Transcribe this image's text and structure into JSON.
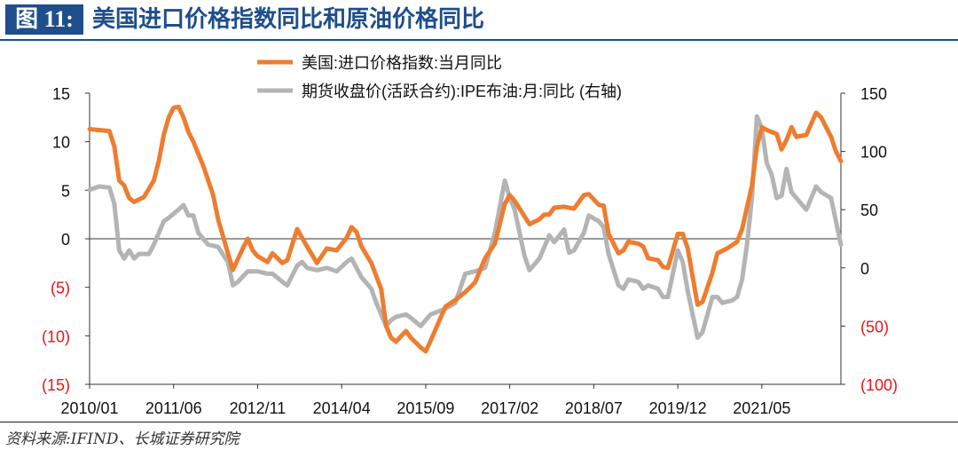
{
  "figure": {
    "tag": "图 11:",
    "title": "美国进口价格指数同比和原油价格同比",
    "source": "资料来源:IFIND、长城证券研究院",
    "accent_color": "#1f4e8c"
  },
  "chart_data": {
    "type": "line",
    "grid": false,
    "legend_position": "top",
    "x_tick_labels": [
      "2010/01",
      "2011/06",
      "2012/11",
      "2014/04",
      "2015/09",
      "2017/02",
      "2018/07",
      "2019/12",
      "2021/05"
    ],
    "left_axis": {
      "ylim": [
        -15,
        15
      ],
      "ticks": [
        15,
        10,
        5,
        0,
        -5,
        -10,
        -15
      ],
      "tick_labels": [
        "15",
        "10",
        "5",
        "0",
        "(5)",
        "(10)",
        "(15)"
      ],
      "negative_label_color": "#e8141b"
    },
    "right_axis": {
      "ylim": [
        -100,
        150
      ],
      "ticks": [
        150,
        100,
        50,
        0,
        -50,
        -100
      ],
      "tick_labels": [
        "150",
        "100",
        "50",
        "0",
        "(50)",
        "(100)"
      ],
      "negative_label_color": "#e8141b"
    },
    "series": [
      {
        "name": "美国:进口价格指数:当月同比",
        "axis": "left",
        "color": "#ed7d31",
        "points": [
          [
            "2010/01",
            11.3
          ],
          [
            "2010/05",
            11.1
          ],
          [
            "2010/06",
            9.5
          ],
          [
            "2010/07",
            6.0
          ],
          [
            "2010/08",
            5.5
          ],
          [
            "2010/09",
            4.2
          ],
          [
            "2010/10",
            3.8
          ],
          [
            "2010/12",
            4.3
          ],
          [
            "2011/02",
            6.0
          ],
          [
            "2011/03",
            8.0
          ],
          [
            "2011/04",
            10.7
          ],
          [
            "2011/05",
            12.5
          ],
          [
            "2011/06",
            13.5
          ],
          [
            "2011/07",
            13.6
          ],
          [
            "2011/08",
            12.5
          ],
          [
            "2011/09",
            11.0
          ],
          [
            "2011/10",
            10.0
          ],
          [
            "2011/12",
            7.5
          ],
          [
            "2012/02",
            4.5
          ],
          [
            "2012/03",
            2.0
          ],
          [
            "2012/05",
            -1.5
          ],
          [
            "2012/06",
            -3.2
          ],
          [
            "2012/08",
            -1.0
          ],
          [
            "2012/09",
            0.0
          ],
          [
            "2012/10",
            -1.2
          ],
          [
            "2012/11",
            -1.8
          ],
          [
            "2013/01",
            -2.4
          ],
          [
            "2013/02",
            -1.5
          ],
          [
            "2013/04",
            -2.5
          ],
          [
            "2013/05",
            -2.2
          ],
          [
            "2013/07",
            1.0
          ],
          [
            "2013/09",
            -0.8
          ],
          [
            "2013/11",
            -2.5
          ],
          [
            "2014/01",
            -1.0
          ],
          [
            "2014/03",
            -1.2
          ],
          [
            "2014/05",
            0.1
          ],
          [
            "2014/06",
            1.2
          ],
          [
            "2014/07",
            0.7
          ],
          [
            "2014/08",
            -0.8
          ],
          [
            "2014/10",
            -2.5
          ],
          [
            "2014/12",
            -5.2
          ],
          [
            "2015/01",
            -9.0
          ],
          [
            "2015/02",
            -10.2
          ],
          [
            "2015/03",
            -10.6
          ],
          [
            "2015/05",
            -9.5
          ],
          [
            "2015/06",
            -10.2
          ],
          [
            "2015/08",
            -11.2
          ],
          [
            "2015/09",
            -11.6
          ],
          [
            "2015/10",
            -10.5
          ],
          [
            "2016/01",
            -7.0
          ],
          [
            "2016/03",
            -6.3
          ],
          [
            "2016/05",
            -5.5
          ],
          [
            "2016/07",
            -4.5
          ],
          [
            "2016/09",
            -2.0
          ],
          [
            "2016/11",
            -0.5
          ],
          [
            "2017/01",
            3.6
          ],
          [
            "2017/02",
            4.5
          ],
          [
            "2017/03",
            3.9
          ],
          [
            "2017/05",
            2.3
          ],
          [
            "2017/06",
            1.5
          ],
          [
            "2017/08",
            2.0
          ],
          [
            "2017/09",
            2.5
          ],
          [
            "2017/10",
            2.5
          ],
          [
            "2017/11",
            3.2
          ],
          [
            "2018/01",
            3.3
          ],
          [
            "2018/03",
            3.1
          ],
          [
            "2018/05",
            4.5
          ],
          [
            "2018/06",
            4.6
          ],
          [
            "2018/08",
            3.5
          ],
          [
            "2018/09",
            3.4
          ],
          [
            "2018/10",
            0.5
          ],
          [
            "2018/12",
            -1.5
          ],
          [
            "2019/01",
            -1.2
          ],
          [
            "2019/02",
            -0.3
          ],
          [
            "2019/04",
            -0.5
          ],
          [
            "2019/05",
            -0.8
          ],
          [
            "2019/06",
            -2.0
          ],
          [
            "2019/08",
            -2.2
          ],
          [
            "2019/09",
            -2.9
          ],
          [
            "2019/10",
            -3.0
          ],
          [
            "2019/12",
            0.5
          ],
          [
            "2020/01",
            0.5
          ],
          [
            "2020/02",
            -1.0
          ],
          [
            "2020/04",
            -6.8
          ],
          [
            "2020/05",
            -6.5
          ],
          [
            "2020/07",
            -3.5
          ],
          [
            "2020/08",
            -1.5
          ],
          [
            "2020/10",
            -1.0
          ],
          [
            "2020/12",
            -0.3
          ],
          [
            "2021/01",
            1.0
          ],
          [
            "2021/03",
            5.5
          ],
          [
            "2021/04",
            9.5
          ],
          [
            "2021/05",
            11.5
          ],
          [
            "2021/06",
            11.2
          ],
          [
            "2021/08",
            10.8
          ],
          [
            "2021/09",
            9.2
          ],
          [
            "2021/10",
            10.2
          ],
          [
            "2021/11",
            11.5
          ],
          [
            "2021/12",
            10.5
          ],
          [
            "2022/02",
            10.7
          ],
          [
            "2022/04",
            13.0
          ],
          [
            "2022/05",
            12.5
          ],
          [
            "2022/07",
            10.5
          ],
          [
            "2022/08",
            9.0
          ],
          [
            "2022/09",
            8.0
          ]
        ]
      },
      {
        "name": "期货收盘价(活跃合约):IPE布油:月:同比 (右轴)",
        "axis": "right",
        "color": "#b4b4b4",
        "points": [
          [
            "2010/01",
            67
          ],
          [
            "2010/03",
            70
          ],
          [
            "2010/05",
            69
          ],
          [
            "2010/06",
            55
          ],
          [
            "2010/07",
            15
          ],
          [
            "2010/08",
            8
          ],
          [
            "2010/09",
            15
          ],
          [
            "2010/10",
            8
          ],
          [
            "2010/11",
            12
          ],
          [
            "2011/01",
            12
          ],
          [
            "2011/02",
            20
          ],
          [
            "2011/04",
            40
          ],
          [
            "2011/05",
            43
          ],
          [
            "2011/07",
            50
          ],
          [
            "2011/08",
            54
          ],
          [
            "2011/09",
            45
          ],
          [
            "2011/10",
            45
          ],
          [
            "2011/11",
            30
          ],
          [
            "2012/01",
            20
          ],
          [
            "2012/03",
            18
          ],
          [
            "2012/05",
            5
          ],
          [
            "2012/06",
            -15
          ],
          [
            "2012/07",
            -12
          ],
          [
            "2012/09",
            -3
          ],
          [
            "2012/11",
            -3
          ],
          [
            "2013/01",
            -5
          ],
          [
            "2013/02",
            -5
          ],
          [
            "2013/04",
            -12
          ],
          [
            "2013/05",
            -15
          ],
          [
            "2013/07",
            2
          ],
          [
            "2013/08",
            5
          ],
          [
            "2013/09",
            0
          ],
          [
            "2013/11",
            -2
          ],
          [
            "2014/01",
            0
          ],
          [
            "2014/03",
            -3
          ],
          [
            "2014/05",
            5
          ],
          [
            "2014/06",
            8
          ],
          [
            "2014/07",
            0
          ],
          [
            "2014/08",
            -8
          ],
          [
            "2014/10",
            -18
          ],
          [
            "2014/11",
            -30
          ],
          [
            "2015/01",
            -50
          ],
          [
            "2015/02",
            -45
          ],
          [
            "2015/03",
            -42
          ],
          [
            "2015/05",
            -40
          ],
          [
            "2015/06",
            -43
          ],
          [
            "2015/08",
            -50
          ],
          [
            "2015/09",
            -45
          ],
          [
            "2015/10",
            -40
          ],
          [
            "2016/01",
            -35
          ],
          [
            "2016/03",
            -30
          ],
          [
            "2016/05",
            -5
          ],
          [
            "2016/07",
            -3
          ],
          [
            "2016/09",
            0
          ],
          [
            "2016/10",
            15
          ],
          [
            "2016/11",
            30
          ],
          [
            "2017/01",
            75
          ],
          [
            "2017/02",
            60
          ],
          [
            "2017/03",
            50
          ],
          [
            "2017/05",
            10
          ],
          [
            "2017/06",
            -2
          ],
          [
            "2017/08",
            8
          ],
          [
            "2017/10",
            28
          ],
          [
            "2017/11",
            22
          ],
          [
            "2018/01",
            33
          ],
          [
            "2018/02",
            13
          ],
          [
            "2018/03",
            15
          ],
          [
            "2018/05",
            30
          ],
          [
            "2018/06",
            45
          ],
          [
            "2018/08",
            40
          ],
          [
            "2018/09",
            35
          ],
          [
            "2018/10",
            12
          ],
          [
            "2018/12",
            -15
          ],
          [
            "2019/01",
            -18
          ],
          [
            "2019/02",
            -10
          ],
          [
            "2019/04",
            -12
          ],
          [
            "2019/05",
            -18
          ],
          [
            "2019/06",
            -15
          ],
          [
            "2019/08",
            -18
          ],
          [
            "2019/09",
            -25
          ],
          [
            "2019/10",
            -25
          ],
          [
            "2019/12",
            15
          ],
          [
            "2020/01",
            5
          ],
          [
            "2020/02",
            -20
          ],
          [
            "2020/04",
            -60
          ],
          [
            "2020/05",
            -55
          ],
          [
            "2020/07",
            -25
          ],
          [
            "2020/08",
            -25
          ],
          [
            "2020/09",
            -30
          ],
          [
            "2020/11",
            -28
          ],
          [
            "2020/12",
            -25
          ],
          [
            "2021/01",
            -10
          ],
          [
            "2021/02",
            20
          ],
          [
            "2021/03",
            60
          ],
          [
            "2021/04",
            130
          ],
          [
            "2021/05",
            120
          ],
          [
            "2021/06",
            90
          ],
          [
            "2021/07",
            80
          ],
          [
            "2021/08",
            60
          ],
          [
            "2021/09",
            62
          ],
          [
            "2021/10",
            85
          ],
          [
            "2021/11",
            65
          ],
          [
            "2021/12",
            60
          ],
          [
            "2022/02",
            50
          ],
          [
            "2022/04",
            70
          ],
          [
            "2022/05",
            65
          ],
          [
            "2022/07",
            60
          ],
          [
            "2022/08",
            40
          ],
          [
            "2022/09",
            20
          ]
        ]
      }
    ]
  }
}
